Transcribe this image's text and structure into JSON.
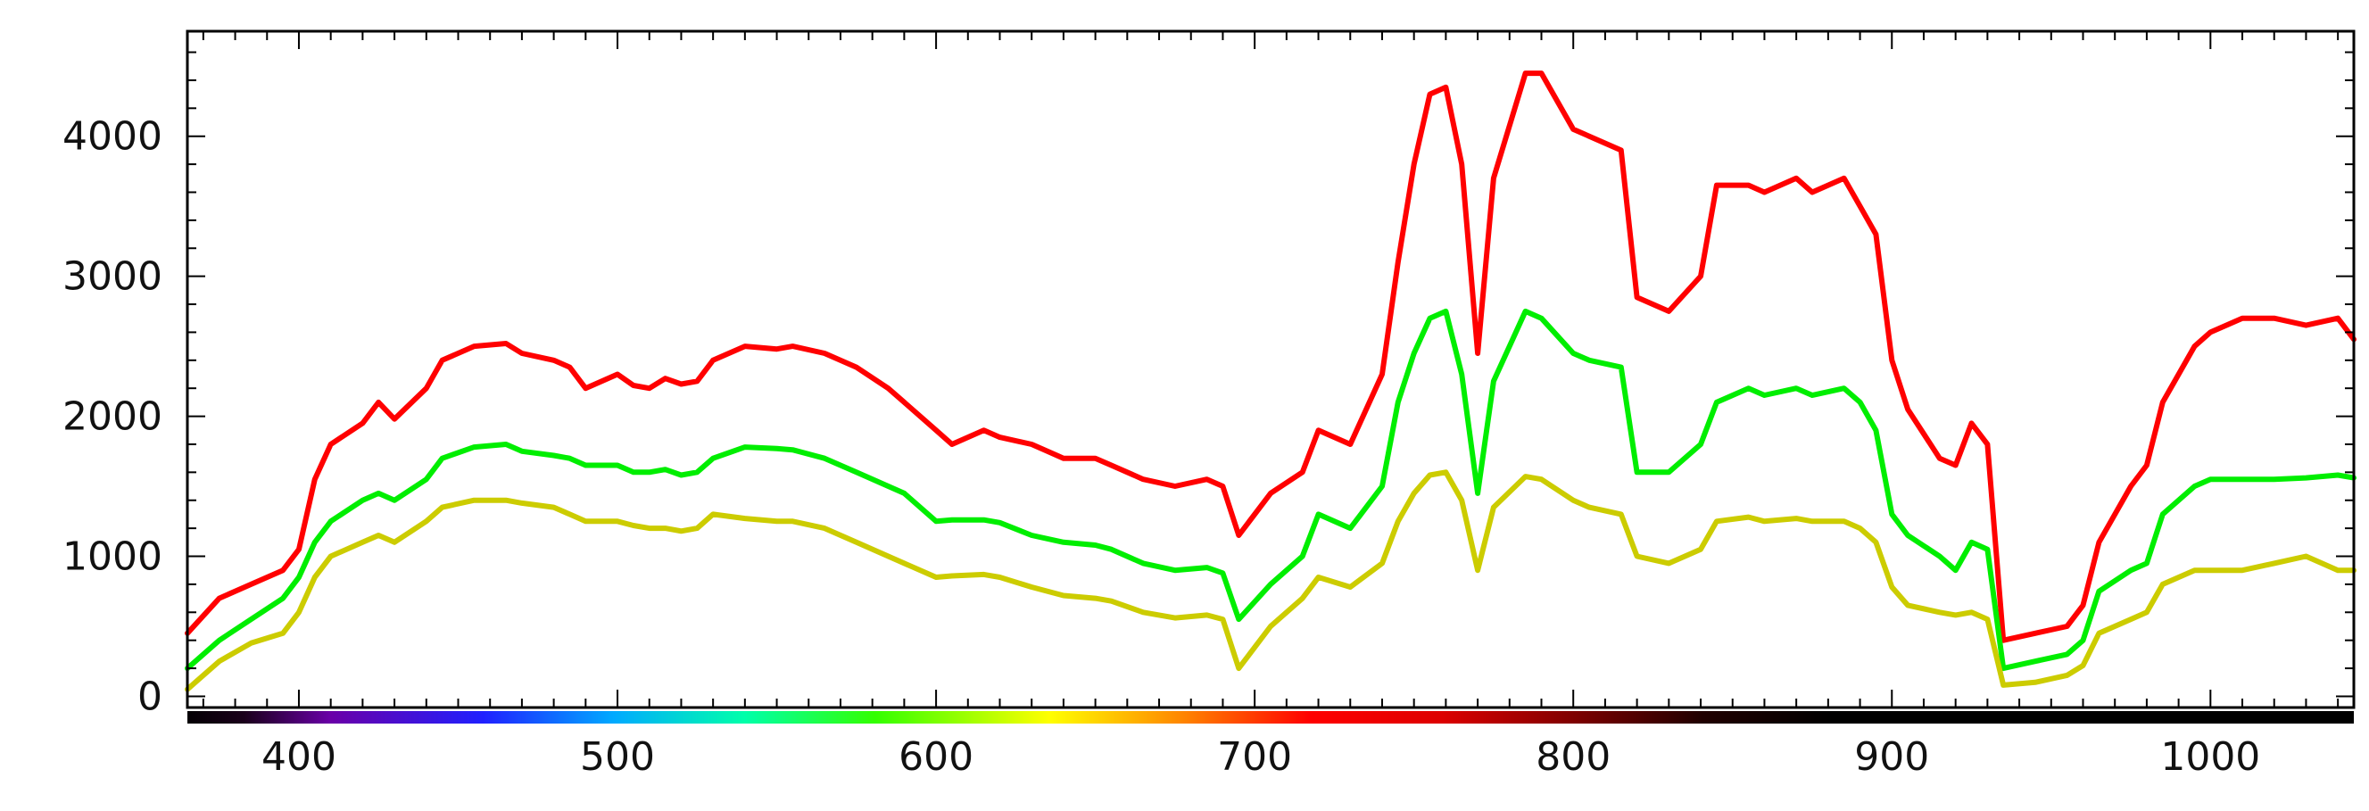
{
  "chart_data": {
    "type": "line",
    "title": "",
    "xlabel": "",
    "ylabel": "",
    "xlim": [
      365,
      1045
    ],
    "ylim": [
      -80,
      4750
    ],
    "x_ticks": [
      400,
      500,
      600,
      700,
      800,
      900,
      1000
    ],
    "y_ticks": [
      0,
      1000,
      2000,
      3000,
      4000
    ],
    "x_tick_labels": [
      "400",
      "500",
      "600",
      "700",
      "800",
      "900",
      "1000"
    ],
    "y_tick_labels": [
      "0",
      "1000",
      "2000",
      "3000",
      "4000"
    ],
    "grid": false,
    "legend": "none",
    "spectrum_bar": true,
    "series": [
      {
        "color": "#ff0000",
        "x": [
          365,
          375,
          385,
          395,
          400,
          405,
          410,
          420,
          425,
          430,
          440,
          445,
          455,
          465,
          470,
          480,
          485,
          490,
          500,
          505,
          510,
          515,
          520,
          525,
          530,
          540,
          550,
          555,
          565,
          575,
          585,
          590,
          600,
          605,
          615,
          620,
          630,
          640,
          650,
          655,
          665,
          675,
          685,
          690,
          695,
          705,
          715,
          720,
          730,
          740,
          745,
          750,
          755,
          760,
          765,
          770,
          775,
          785,
          790,
          800,
          805,
          815,
          820,
          830,
          840,
          845,
          855,
          860,
          870,
          875,
          885,
          890,
          895,
          900,
          905,
          915,
          920,
          925,
          930,
          935,
          945,
          955,
          960,
          965,
          975,
          980,
          985,
          995,
          1000,
          1010,
          1020,
          1030,
          1040,
          1045
        ],
        "values": [
          450,
          700,
          800,
          900,
          1050,
          1550,
          1800,
          1950,
          2100,
          1980,
          2200,
          2400,
          2500,
          2520,
          2450,
          2400,
          2350,
          2200,
          2300,
          2220,
          2200,
          2270,
          2230,
          2250,
          2400,
          2500,
          2480,
          2500,
          2450,
          2350,
          2200,
          2100,
          1900,
          1800,
          1900,
          1850,
          1800,
          1700,
          1700,
          1650,
          1550,
          1500,
          1550,
          1500,
          1150,
          1450,
          1600,
          1900,
          1800,
          2300,
          3100,
          3800,
          4300,
          4350,
          3800,
          2450,
          3700,
          4450,
          4450,
          4050,
          4000,
          3900,
          2850,
          2750,
          3000,
          3650,
          3650,
          3600,
          3700,
          3600,
          3700,
          3500,
          3300,
          2400,
          2050,
          1700,
          1650,
          1950,
          1800,
          400,
          450,
          500,
          650,
          1100,
          1500,
          1650,
          2100,
          2500,
          2600,
          2700,
          2700,
          2650,
          2700,
          2550
        ]
      },
      {
        "color": "#00ee00",
        "x": [
          365,
          375,
          385,
          395,
          400,
          405,
          410,
          420,
          425,
          430,
          440,
          445,
          455,
          465,
          470,
          480,
          485,
          490,
          500,
          505,
          510,
          515,
          520,
          525,
          530,
          540,
          550,
          555,
          565,
          575,
          585,
          590,
          600,
          605,
          615,
          620,
          630,
          640,
          650,
          655,
          665,
          675,
          685,
          690,
          695,
          705,
          715,
          720,
          730,
          740,
          745,
          750,
          755,
          760,
          765,
          770,
          775,
          785,
          790,
          800,
          805,
          815,
          820,
          830,
          840,
          845,
          855,
          860,
          870,
          875,
          885,
          890,
          895,
          900,
          905,
          915,
          920,
          925,
          930,
          935,
          945,
          955,
          960,
          965,
          975,
          980,
          985,
          995,
          1000,
          1010,
          1020,
          1030,
          1040,
          1045
        ],
        "values": [
          200,
          400,
          550,
          700,
          850,
          1100,
          1250,
          1400,
          1450,
          1400,
          1550,
          1700,
          1780,
          1800,
          1750,
          1720,
          1700,
          1650,
          1650,
          1600,
          1600,
          1620,
          1580,
          1600,
          1700,
          1780,
          1770,
          1760,
          1700,
          1600,
          1500,
          1450,
          1250,
          1260,
          1260,
          1240,
          1150,
          1100,
          1080,
          1050,
          950,
          900,
          920,
          880,
          550,
          800,
          1000,
          1300,
          1200,
          1500,
          2100,
          2450,
          2700,
          2750,
          2300,
          1450,
          2250,
          2750,
          2700,
          2450,
          2400,
          2350,
          1600,
          1600,
          1800,
          2100,
          2200,
          2150,
          2200,
          2150,
          2200,
          2100,
          1900,
          1300,
          1150,
          1000,
          900,
          1100,
          1050,
          200,
          250,
          300,
          400,
          750,
          900,
          950,
          1300,
          1500,
          1550,
          1550,
          1550,
          1560,
          1580,
          1560
        ]
      },
      {
        "color": "#cccc00",
        "x": [
          365,
          375,
          385,
          395,
          400,
          405,
          410,
          420,
          425,
          430,
          440,
          445,
          455,
          465,
          470,
          480,
          485,
          490,
          500,
          505,
          510,
          515,
          520,
          525,
          530,
          540,
          550,
          555,
          565,
          575,
          585,
          590,
          600,
          605,
          615,
          620,
          630,
          640,
          650,
          655,
          665,
          675,
          685,
          690,
          695,
          705,
          715,
          720,
          730,
          740,
          745,
          750,
          755,
          760,
          765,
          770,
          775,
          785,
          790,
          800,
          805,
          815,
          820,
          830,
          840,
          845,
          855,
          860,
          870,
          875,
          885,
          890,
          895,
          900,
          905,
          915,
          920,
          925,
          930,
          935,
          945,
          955,
          960,
          965,
          975,
          980,
          985,
          995,
          1000,
          1010,
          1020,
          1030,
          1040,
          1045
        ],
        "values": [
          50,
          250,
          380,
          450,
          600,
          850,
          1000,
          1100,
          1150,
          1100,
          1250,
          1350,
          1400,
          1400,
          1380,
          1350,
          1300,
          1250,
          1250,
          1220,
          1200,
          1200,
          1180,
          1200,
          1300,
          1270,
          1250,
          1250,
          1200,
          1100,
          1000,
          950,
          850,
          860,
          870,
          850,
          780,
          720,
          700,
          680,
          600,
          560,
          580,
          550,
          200,
          500,
          700,
          850,
          780,
          950,
          1250,
          1450,
          1580,
          1600,
          1400,
          900,
          1350,
          1570,
          1550,
          1400,
          1350,
          1300,
          1000,
          950,
          1050,
          1250,
          1280,
          1250,
          1270,
          1250,
          1250,
          1200,
          1100,
          780,
          650,
          600,
          580,
          600,
          550,
          80,
          100,
          150,
          220,
          450,
          550,
          600,
          800,
          900,
          900,
          900,
          950,
          1000,
          900,
          900
        ]
      }
    ]
  }
}
